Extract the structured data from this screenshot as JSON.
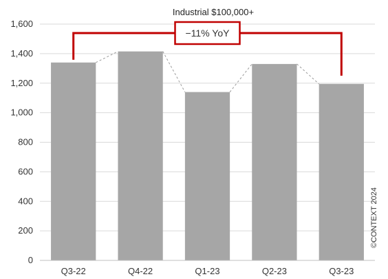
{
  "chart_data": {
    "type": "bar",
    "title": "Industrial $100,000+",
    "categories": [
      "Q3-22",
      "Q4-22",
      "Q1-23",
      "Q2-23",
      "Q3-23"
    ],
    "values": [
      1340,
      1415,
      1140,
      1330,
      1195
    ],
    "ylim": [
      0,
      1600
    ],
    "yticks": [
      0,
      200,
      400,
      600,
      800,
      1000,
      1200,
      1400,
      1600
    ],
    "ytick_labels": [
      "0",
      "200",
      "400",
      "600",
      "800",
      "1,000",
      "1,200",
      "1,400",
      "1,600"
    ],
    "xlabel": "",
    "ylabel": "",
    "grid": true,
    "bar_color": "#a6a6a6",
    "annotation": {
      "text": "−11% YoY",
      "from_category": "Q3-22",
      "to_category": "Q3-23",
      "color": "#c00000"
    },
    "copyright": "©CONTEXT 2024"
  }
}
